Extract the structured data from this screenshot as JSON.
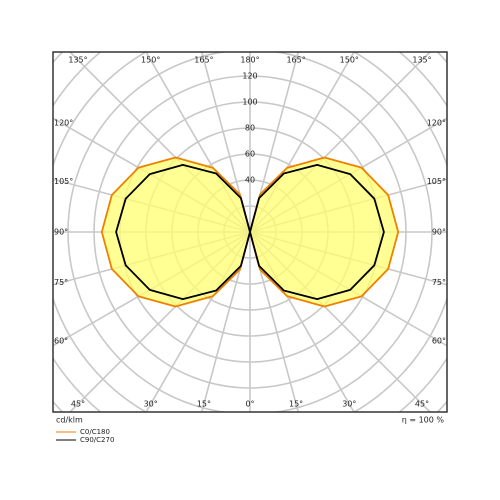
{
  "chart_data": {
    "type": "polar",
    "angles": [
      0,
      15,
      30,
      45,
      60,
      75,
      90,
      105,
      120,
      135,
      150,
      165,
      180
    ],
    "series": [
      {
        "name": "C0/C180",
        "color": "#f08000",
        "fill": "#ffff70",
        "values": [
          0,
          30,
          57,
          81,
          99,
          110,
          114,
          110,
          99,
          81,
          57,
          30,
          0
        ]
      },
      {
        "name": "C90/C270",
        "color": "#000000",
        "values": [
          0,
          27,
          52,
          73,
          89,
          99,
          103,
          99,
          89,
          73,
          52,
          27,
          0
        ]
      }
    ],
    "rlim": [
      0,
      200
    ],
    "rgrid": [
      20,
      40,
      60,
      80,
      100,
      120,
      140,
      160,
      180,
      200
    ],
    "rtick_labels": [
      40,
      60,
      80,
      100,
      120
    ],
    "angle_ticks": [
      {
        "value": 0,
        "label": "0°"
      },
      {
        "value": 15,
        "label": "15°"
      },
      {
        "value": 30,
        "label": "30°"
      },
      {
        "value": 45,
        "label": "45°"
      },
      {
        "value": 60,
        "label": "60°"
      },
      {
        "value": 75,
        "label": "75°"
      },
      {
        "value": 90,
        "label": "90°"
      },
      {
        "value": 105,
        "label": "105°"
      },
      {
        "value": 120,
        "label": "120°"
      },
      {
        "value": 135,
        "label": "135°"
      },
      {
        "value": 150,
        "label": "150°"
      },
      {
        "value": 165,
        "label": "165°"
      },
      {
        "value": 180,
        "label": "180°"
      }
    ],
    "unit_label": "cd/klm",
    "efficiency_label": "η = 100 %"
  }
}
